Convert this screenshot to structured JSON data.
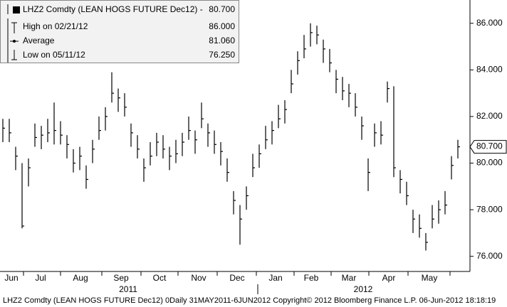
{
  "chart_data": {
    "type": "ohlc",
    "high": [
      81.9,
      81.9,
      80.7,
      80.0,
      80.2,
      81.7,
      81.6,
      81.9,
      82.6,
      81.8,
      81.2,
      80.6,
      80.7,
      79.9,
      81.0,
      82.0,
      82.4,
      83.9,
      83.2,
      83.0,
      81.7,
      81.2,
      80.2,
      80.9,
      81.3,
      81.2,
      80.7,
      81.0,
      81.3,
      82.0,
      81.4,
      82.6,
      81.7,
      81.4,
      80.9,
      80.2,
      78.8,
      78.2,
      79.0,
      80.4,
      80.8,
      81.6,
      81.8,
      82.5,
      82.7,
      84.0,
      84.8,
      85.5,
      86.0,
      85.9,
      85.3,
      84.9,
      84.0,
      83.7,
      83.4,
      83.0,
      82.0,
      80.2,
      81.7,
      81.8,
      83.5,
      83.3,
      79.7,
      79.2,
      78.0,
      77.8,
      77.0,
      78.2,
      78.4,
      78.8,
      80.3,
      81.0
    ],
    "low": [
      80.9,
      80.9,
      79.7,
      77.2,
      79.0,
      80.7,
      80.6,
      80.9,
      80.8,
      80.8,
      80.2,
      79.6,
      79.7,
      78.9,
      80.0,
      81.0,
      81.4,
      82.6,
      82.2,
      82.0,
      80.7,
      80.2,
      79.2,
      79.9,
      80.3,
      80.2,
      79.7,
      80.0,
      80.3,
      81.0,
      80.4,
      81.5,
      80.7,
      80.4,
      79.9,
      79.2,
      77.8,
      76.5,
      78.0,
      79.4,
      79.8,
      80.6,
      80.8,
      81.5,
      81.7,
      83.0,
      83.8,
      84.5,
      85.0,
      85.1,
      84.3,
      83.9,
      83.0,
      82.7,
      82.4,
      82.0,
      81.0,
      78.8,
      80.7,
      80.8,
      82.6,
      79.4,
      78.7,
      78.2,
      77.0,
      76.8,
      76.25,
      77.2,
      77.4,
      77.8,
      79.3,
      80.2
    ],
    "close": [
      81.5,
      81.3,
      80.3,
      77.3,
      79.8,
      81.1,
      81.2,
      81.3,
      81.4,
      81.2,
      80.8,
      80.0,
      80.3,
      79.3,
      80.6,
      81.4,
      82.0,
      83.0,
      82.8,
      82.4,
      81.3,
      80.6,
      79.8,
      80.3,
      80.9,
      80.6,
      80.3,
      80.4,
      80.9,
      81.4,
      81.0,
      81.9,
      81.3,
      80.8,
      80.5,
      79.6,
      78.4,
      77.6,
      78.6,
      79.8,
      80.4,
      81.0,
      81.4,
      81.9,
      82.3,
      83.4,
      84.4,
      84.9,
      85.6,
      85.5,
      84.9,
      84.3,
      83.6,
      83.1,
      83.0,
      82.4,
      81.6,
      79.6,
      81.3,
      81.2,
      83.2,
      79.8,
      79.3,
      78.6,
      77.6,
      77.2,
      76.6,
      77.6,
      78.0,
      78.2,
      79.9,
      80.7
    ],
    "color": "#000000",
    "ylim": [
      75.35,
      87.0
    ],
    "yticks": [
      {
        "value": 76,
        "label": "76.000"
      },
      {
        "value": 78,
        "label": "78.000"
      },
      {
        "value": 80,
        "label": "80.000"
      },
      {
        "value": 82,
        "label": "82.000"
      },
      {
        "value": 84,
        "label": "84.000"
      },
      {
        "value": 86,
        "label": "86.000"
      }
    ],
    "last_price": {
      "value": 80.7,
      "label": "80.700"
    },
    "months": [
      "Jun",
      "Jul",
      "Aug",
      "Sep",
      "Oct",
      "Nov",
      "Dec",
      "Jan",
      "Feb",
      "Mar",
      "Apr",
      "May"
    ],
    "years": [
      "2011",
      "2012"
    ],
    "legend": [
      {
        "name": "LHZ2 Comdty (LEAN HOGS FUTURE  Dec12) -",
        "value": "80.700"
      },
      {
        "name": "High on 02/21/12",
        "value": "86.000"
      },
      {
        "name": "Average",
        "value": "81.060"
      },
      {
        "name": "Low on 05/11/12",
        "value": "76.250"
      }
    ],
    "footer": "LHZ2 Comdty (LEAN HOGS FUTURE  Dec12) 0Daily 31MAY2011-6JUN2012 Copyright© 2012 Bloomberg Finance L.P. 06-Jun-2012 18:18:19"
  }
}
